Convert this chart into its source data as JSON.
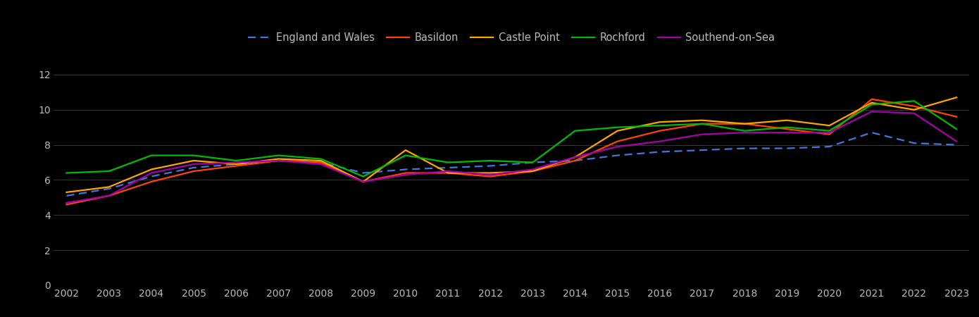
{
  "years": [
    2002,
    2003,
    2004,
    2005,
    2006,
    2007,
    2008,
    2009,
    2010,
    2011,
    2012,
    2013,
    2014,
    2015,
    2016,
    2017,
    2018,
    2019,
    2020,
    2021,
    2022,
    2023
  ],
  "england_wales": [
    5.1,
    5.5,
    6.2,
    6.7,
    6.9,
    7.1,
    7.0,
    6.4,
    6.6,
    6.7,
    6.8,
    7.0,
    7.1,
    7.4,
    7.6,
    7.7,
    7.8,
    7.8,
    7.9,
    8.7,
    8.1,
    8.0
  ],
  "basildon": [
    4.6,
    5.1,
    5.9,
    6.5,
    6.8,
    7.1,
    7.0,
    5.9,
    6.4,
    6.4,
    6.2,
    6.5,
    7.1,
    8.2,
    8.8,
    9.2,
    9.2,
    8.9,
    8.6,
    10.6,
    10.2,
    9.6
  ],
  "castle_point": [
    5.3,
    5.6,
    6.6,
    7.1,
    6.9,
    7.2,
    7.1,
    5.9,
    7.7,
    6.4,
    6.4,
    6.5,
    7.3,
    8.8,
    9.3,
    9.4,
    9.2,
    9.4,
    9.1,
    10.4,
    10.0,
    10.7
  ],
  "rochford": [
    6.4,
    6.5,
    7.4,
    7.4,
    7.1,
    7.4,
    7.2,
    6.2,
    7.4,
    7.0,
    7.1,
    7.0,
    8.8,
    9.0,
    9.1,
    9.2,
    8.8,
    9.0,
    8.8,
    10.3,
    10.5,
    8.9
  ],
  "southend": [
    4.7,
    5.1,
    6.4,
    6.9,
    7.0,
    7.1,
    6.9,
    5.9,
    6.3,
    6.5,
    6.3,
    6.6,
    7.3,
    7.9,
    8.2,
    8.6,
    8.7,
    8.7,
    8.7,
    9.9,
    9.8,
    8.2
  ],
  "colors": {
    "england_wales": "#4477dd",
    "basildon": "#ff4500",
    "castle_point": "#ffa500",
    "rochford": "#00bb00",
    "southend": "#aa00aa"
  },
  "background_color": "#000000",
  "text_color": "#bbbbbb",
  "grid_color": "#333333",
  "ylim": [
    0,
    13
  ],
  "yticks": [
    0,
    2,
    4,
    6,
    8,
    10,
    12
  ],
  "legend_labels": {
    "england_wales": "England and Wales",
    "basildon": "Basildon",
    "castle_point": "Castle Point",
    "rochford": "Rochford",
    "southend": "Southend-on-Sea"
  }
}
